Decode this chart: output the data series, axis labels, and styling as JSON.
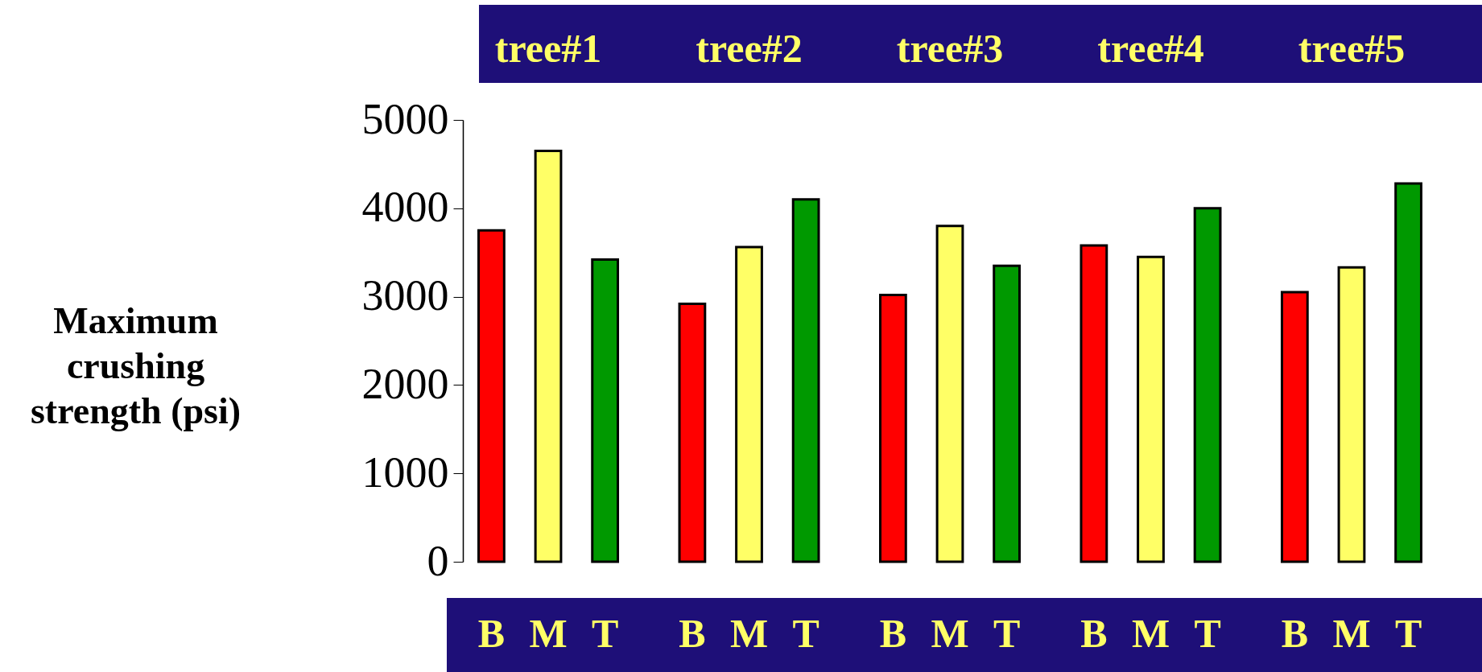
{
  "chart_data": {
    "type": "bar",
    "ylabel": "Maximum\ncrushing\nstrength (psi)",
    "categories": [
      "tree#1",
      "tree#2",
      "tree#3",
      "tree#4",
      "tree#5"
    ],
    "series": [
      {
        "name": "B",
        "color": "#ff0000",
        "values": [
          3750,
          2920,
          3020,
          3580,
          3050
        ]
      },
      {
        "name": "M",
        "color": "#ffff66",
        "values": [
          4650,
          3560,
          3800,
          3450,
          3330
        ]
      },
      {
        "name": "T",
        "color": "#009900",
        "values": [
          3420,
          4100,
          3350,
          4000,
          4280
        ]
      }
    ],
    "ylim": [
      0,
      5000
    ],
    "yticks": [
      0,
      1000,
      2000,
      3000,
      4000,
      5000
    ],
    "grid": false,
    "legend": false
  }
}
